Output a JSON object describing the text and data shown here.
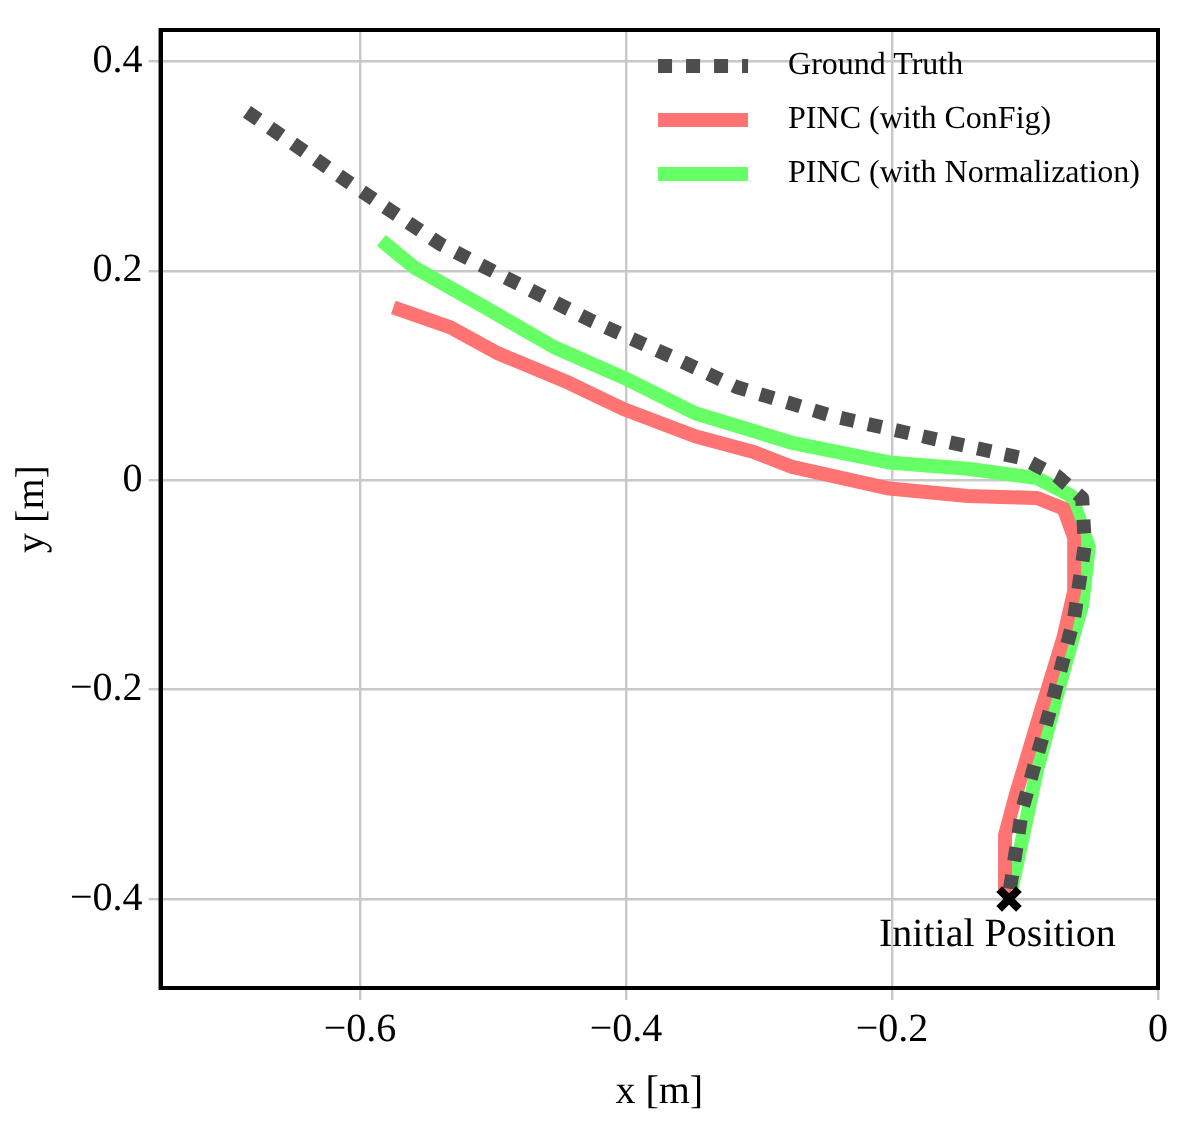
{
  "chart_data": {
    "type": "line",
    "xlabel": "x [m]",
    "ylabel": "y [m]",
    "xlim": [
      -0.75,
      0
    ],
    "ylim": [
      -0.485,
      0.43
    ],
    "xticks": [
      {
        "value": -0.6,
        "label": "−0.6"
      },
      {
        "value": -0.4,
        "label": "−0.4"
      },
      {
        "value": -0.2,
        "label": "−0.2"
      },
      0
    ],
    "yticks": [
      {
        "value": -0.4,
        "label": "−0.4"
      },
      {
        "value": -0.2,
        "label": "−0.2"
      },
      0,
      0.2,
      0.4
    ],
    "grid": true,
    "legend": "top right",
    "marker": "none",
    "series": [
      {
        "name": "Ground Truth",
        "color": "#4d4d4d",
        "line_style": "dotted",
        "x": [
          -0.685,
          -0.6,
          -0.539,
          -0.496,
          -0.427,
          -0.364,
          -0.317,
          -0.244,
          -0.17,
          -0.102,
          -0.076,
          -0.057,
          -0.055,
          -0.063,
          -0.08,
          -0.102,
          -0.112
        ],
        "values": [
          0.352,
          0.277,
          0.225,
          0.197,
          0.153,
          0.117,
          0.089,
          0.061,
          0.04,
          0.021,
          0.004,
          -0.017,
          -0.062,
          -0.131,
          -0.214,
          -0.314,
          -0.396
        ]
      },
      {
        "name": "PINC (with ConFig)",
        "color": "#ff7373",
        "line_style": "solid",
        "x": [
          -0.575,
          -0.532,
          -0.496,
          -0.443,
          -0.402,
          -0.348,
          -0.304,
          -0.276,
          -0.202,
          -0.143,
          -0.091,
          -0.071,
          -0.063,
          -0.063,
          -0.071,
          -0.091,
          -0.107,
          -0.115,
          -0.115
        ],
        "values": [
          0.165,
          0.146,
          0.121,
          0.093,
          0.068,
          0.042,
          0.027,
          0.013,
          -0.008,
          -0.015,
          -0.017,
          -0.027,
          -0.055,
          -0.106,
          -0.15,
          -0.233,
          -0.301,
          -0.339,
          -0.39
        ]
      },
      {
        "name": "PINC (with Normalization)",
        "color": "#66ff66",
        "line_style": "solid",
        "x": [
          -0.584,
          -0.559,
          -0.506,
          -0.454,
          -0.402,
          -0.348,
          -0.304,
          -0.276,
          -0.202,
          -0.143,
          -0.091,
          -0.065,
          -0.052,
          -0.057,
          -0.071,
          -0.091,
          -0.11
        ],
        "values": [
          0.229,
          0.203,
          0.165,
          0.127,
          0.098,
          0.064,
          0.047,
          0.036,
          0.017,
          0.011,
          0.002,
          -0.015,
          -0.064,
          -0.119,
          -0.182,
          -0.277,
          -0.39
        ]
      },
      {
        "type": "scatter",
        "marker": "cross",
        "color": "#000000",
        "x": [
          -0.112
        ],
        "values": [
          -0.4
        ]
      }
    ],
    "annotations": [
      {
        "text": "Initial Position",
        "x": -0.112,
        "y": -0.4
      }
    ]
  }
}
